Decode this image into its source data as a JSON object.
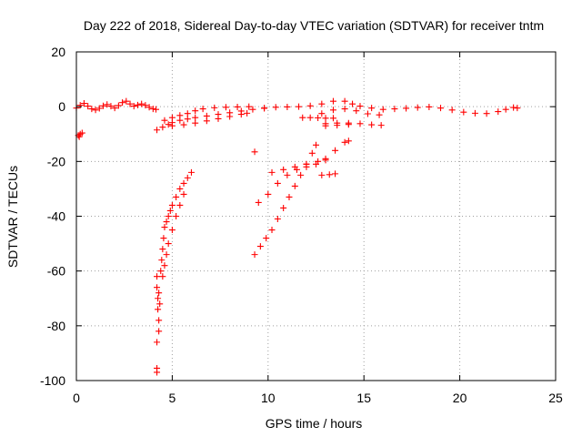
{
  "chart_data": {
    "type": "scatter",
    "title": "Day 222 of 2018, Sidereal Day-to-day VTEC variation (SDTVAR) for receiver tntm",
    "xlabel": "GPS time / hours",
    "ylabel": "SDTVAR / TECUs",
    "xlim": [
      0,
      25
    ],
    "ylim": [
      -100,
      20
    ],
    "xticks": [
      "0",
      "5",
      "10",
      "15",
      "20",
      "25"
    ],
    "yticks": [
      "20",
      "0",
      "-20",
      "-40",
      "-60",
      "-80",
      "-100"
    ],
    "grid": true,
    "marker": "plus",
    "color": "#ff0000",
    "series": [
      {
        "points": [
          [
            0.0,
            -0.5
          ],
          [
            0.2,
            0.5
          ],
          [
            0.4,
            1.2
          ],
          [
            0.6,
            0.2
          ],
          [
            0.8,
            -0.8
          ],
          [
            1.0,
            -1.2
          ],
          [
            1.2,
            -0.6
          ],
          [
            1.4,
            0.3
          ],
          [
            1.6,
            0.8
          ],
          [
            1.8,
            0.2
          ],
          [
            2.0,
            -0.5
          ],
          [
            2.2,
            0.4
          ],
          [
            2.4,
            1.5
          ],
          [
            2.6,
            2.0
          ],
          [
            2.8,
            1.0
          ],
          [
            3.0,
            0.2
          ],
          [
            3.2,
            0.6
          ],
          [
            3.4,
            1.0
          ],
          [
            3.6,
            0.5
          ],
          [
            3.8,
            -0.2
          ],
          [
            4.0,
            -0.8
          ],
          [
            4.15,
            -1.0
          ],
          [
            0.1,
            -10.5
          ],
          [
            0.2,
            -10.0
          ],
          [
            0.3,
            -9.6
          ],
          [
            0.15,
            -11.0
          ],
          [
            4.2,
            -8.5
          ],
          [
            4.5,
            -7.5
          ],
          [
            4.8,
            -6.5
          ],
          [
            5.0,
            -5.8
          ],
          [
            5.4,
            -5.0
          ],
          [
            5.8,
            -4.5
          ],
          [
            6.2,
            -4.0
          ],
          [
            6.8,
            -3.4
          ],
          [
            7.4,
            -2.8
          ],
          [
            8.0,
            -2.2
          ],
          [
            8.6,
            -1.6
          ],
          [
            9.2,
            -1.0
          ],
          [
            9.8,
            -0.6
          ],
          [
            4.6,
            -5.0
          ],
          [
            5.0,
            -4.0
          ],
          [
            5.4,
            -3.2
          ],
          [
            5.8,
            -2.5
          ],
          [
            6.2,
            -1.5
          ],
          [
            6.6,
            -0.8
          ],
          [
            7.2,
            -0.4
          ],
          [
            7.8,
            -0.2
          ],
          [
            8.4,
            -0.1
          ],
          [
            9.0,
            0.0
          ],
          [
            5.0,
            -7.0
          ],
          [
            5.6,
            -6.6
          ],
          [
            6.2,
            -6.0
          ],
          [
            6.8,
            -5.2
          ],
          [
            7.4,
            -4.4
          ],
          [
            8.0,
            -3.6
          ],
          [
            8.6,
            -2.8
          ],
          [
            8.9,
            -2.4
          ],
          [
            9.8,
            -0.5
          ],
          [
            10.4,
            -0.2
          ],
          [
            11.0,
            -0.1
          ],
          [
            11.6,
            0.0
          ],
          [
            12.2,
            0.3
          ],
          [
            12.8,
            1.0
          ],
          [
            13.4,
            2.0
          ],
          [
            14.0,
            2.0
          ],
          [
            14.4,
            1.0
          ],
          [
            14.8,
            0.2
          ],
          [
            15.4,
            -0.5
          ],
          [
            16.0,
            -1.0
          ],
          [
            16.6,
            -0.8
          ],
          [
            17.2,
            -0.6
          ],
          [
            17.8,
            -0.3
          ],
          [
            18.4,
            -0.1
          ],
          [
            19.0,
            -0.5
          ],
          [
            19.6,
            -1.2
          ],
          [
            20.2,
            -2.0
          ],
          [
            20.8,
            -2.4
          ],
          [
            21.4,
            -2.5
          ],
          [
            22.0,
            -1.8
          ],
          [
            22.4,
            -1.0
          ],
          [
            22.8,
            -0.3
          ],
          [
            23.0,
            -0.5
          ],
          [
            11.8,
            -4.0
          ],
          [
            12.2,
            -4.0
          ],
          [
            12.6,
            -4.1
          ],
          [
            13.0,
            -4.2
          ],
          [
            13.4,
            -4.2
          ],
          [
            12.8,
            -2.5
          ],
          [
            13.4,
            -1.2
          ],
          [
            14.0,
            -0.8
          ],
          [
            14.6,
            -1.5
          ],
          [
            15.2,
            -2.6
          ],
          [
            15.8,
            -3.0
          ],
          [
            13.0,
            -6.2
          ],
          [
            13.6,
            -6.0
          ],
          [
            14.2,
            -6.0
          ],
          [
            14.8,
            -6.2
          ],
          [
            15.4,
            -6.6
          ],
          [
            15.9,
            -6.8
          ],
          [
            13.0,
            -7.0
          ],
          [
            13.6,
            -6.8
          ],
          [
            14.2,
            -6.5
          ],
          [
            4.2,
            -62
          ],
          [
            4.2,
            -66
          ],
          [
            4.25,
            -70
          ],
          [
            4.25,
            -74
          ],
          [
            4.3,
            -78
          ],
          [
            4.3,
            -82
          ],
          [
            4.2,
            -86
          ],
          [
            4.4,
            -60
          ],
          [
            4.45,
            -56
          ],
          [
            4.5,
            -52
          ],
          [
            4.55,
            -48
          ],
          [
            4.6,
            -44
          ],
          [
            4.7,
            -42
          ],
          [
            4.8,
            -40
          ],
          [
            4.9,
            -38
          ],
          [
            5.0,
            -36
          ],
          [
            5.2,
            -33
          ],
          [
            5.4,
            -30
          ],
          [
            5.6,
            -28
          ],
          [
            5.8,
            -26
          ],
          [
            6.0,
            -24
          ],
          [
            4.5,
            -62
          ],
          [
            4.6,
            -58
          ],
          [
            4.7,
            -54
          ],
          [
            4.8,
            -50
          ],
          [
            5.0,
            -45
          ],
          [
            5.2,
            -40
          ],
          [
            5.4,
            -36
          ],
          [
            5.6,
            -32
          ],
          [
            4.3,
            -68
          ],
          [
            4.35,
            -72
          ],
          [
            4.2,
            -95.5
          ],
          [
            4.2,
            -97.0
          ],
          [
            9.3,
            -16.5
          ],
          [
            9.3,
            -54
          ],
          [
            9.6,
            -51
          ],
          [
            9.9,
            -48
          ],
          [
            10.2,
            -45
          ],
          [
            10.5,
            -41
          ],
          [
            10.8,
            -37
          ],
          [
            11.1,
            -33
          ],
          [
            11.4,
            -29
          ],
          [
            11.7,
            -25
          ],
          [
            12.0,
            -21
          ],
          [
            12.3,
            -17
          ],
          [
            12.5,
            -14
          ],
          [
            9.5,
            -35
          ],
          [
            10.0,
            -32
          ],
          [
            10.5,
            -28
          ],
          [
            11.0,
            -25
          ],
          [
            11.5,
            -23
          ],
          [
            12.0,
            -22
          ],
          [
            12.5,
            -21
          ],
          [
            13.0,
            -19
          ],
          [
            13.5,
            -16
          ],
          [
            14.0,
            -13
          ],
          [
            14.2,
            -12.5
          ],
          [
            10.2,
            -24
          ],
          [
            10.8,
            -23
          ],
          [
            11.4,
            -22
          ],
          [
            12.0,
            -21
          ],
          [
            12.6,
            -20
          ],
          [
            13.0,
            -19.5
          ],
          [
            12.8,
            -25
          ],
          [
            13.2,
            -24.8
          ],
          [
            13.5,
            -24.5
          ]
        ]
      }
    ]
  }
}
